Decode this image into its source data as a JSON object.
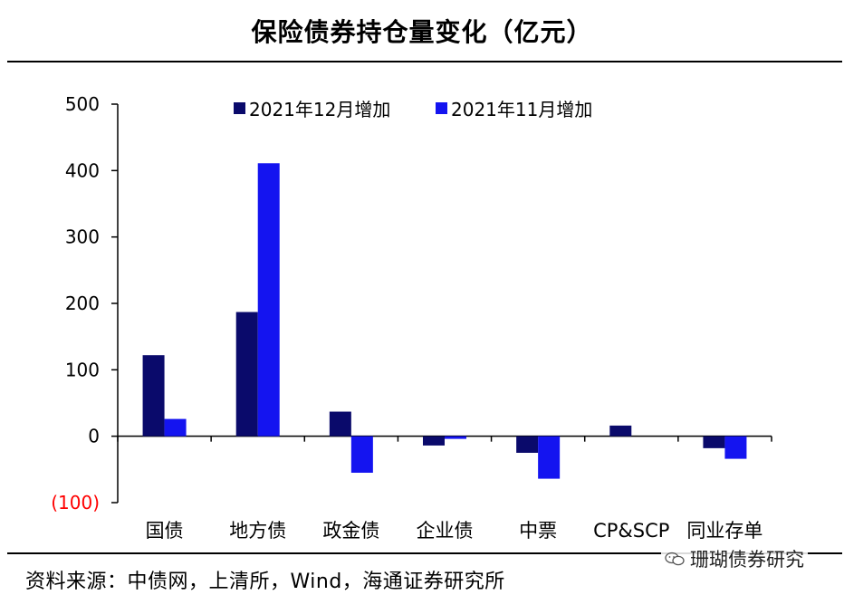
{
  "title": "保险债券持仓量变化（亿元）",
  "source": "资料来源：中债网，上清所，Wind，海通证券研究所",
  "watermark": {
    "text": "珊瑚债券研究",
    "icon": "wechat-icon"
  },
  "colors": {
    "dec": "#0a0a6b",
    "nov": "#1414f0",
    "negative_tick": "#ff0000"
  },
  "chart_data": {
    "type": "bar",
    "title": "保险债券持仓量变化（亿元）",
    "categories": [
      "国债",
      "地方债",
      "政金债",
      "企业债",
      "中票",
      "CP&SCP",
      "同业存单"
    ],
    "series": [
      {
        "name": "2021年12月增加",
        "values": [
          122,
          187,
          37,
          -14,
          -25,
          16,
          -18
        ]
      },
      {
        "name": "2021年11月增加",
        "values": [
          26,
          411,
          -55,
          -4,
          -64,
          0,
          -34
        ]
      }
    ],
    "yticks": [
      500,
      400,
      300,
      200,
      100,
      0,
      -100
    ],
    "ytick_labels": [
      "500",
      "400",
      "300",
      "200",
      "100",
      "0",
      "(100)"
    ],
    "ylim": [
      -100,
      500
    ],
    "xlabel": "",
    "ylabel": "",
    "grid": false,
    "legend": "top"
  }
}
